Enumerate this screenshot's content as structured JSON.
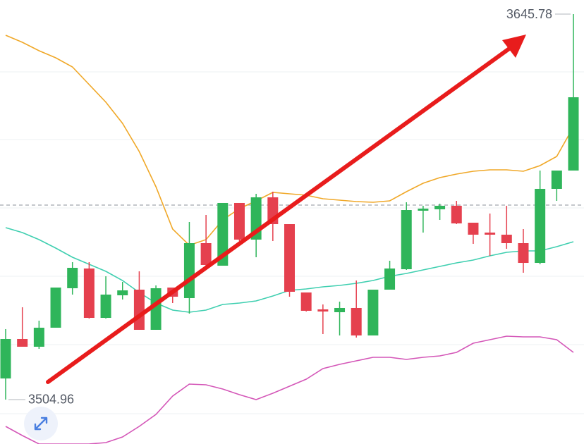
{
  "chart_data": {
    "type": "candlestick",
    "ylim": [
      3488.74,
      3650.93
    ],
    "gridlines": [
      3624.67,
      3599.96,
      3574.98,
      3550.01,
      3525.04,
      3499.81
    ],
    "reference_line": 3576.01,
    "up_color": "#2fb55a",
    "down_color": "#e5404e",
    "categories": [
      null,
      null,
      null,
      null,
      null,
      null,
      null,
      null,
      null,
      null,
      null,
      null,
      null,
      null,
      null,
      null,
      null,
      null,
      null,
      null,
      null,
      null,
      null,
      null,
      null,
      null,
      null,
      null,
      null,
      null,
      null,
      null,
      null,
      null,
      null
    ],
    "open": [
      3512.68,
      3527.1,
      3524.27,
      3531.22,
      3545.64,
      3552.85,
      3534.82,
      3543.06,
      3545.12,
      3530.45,
      3545.89,
      3542.03,
      3562.11,
      3553.87,
      3576.79,
      3563.4,
      3578.85,
      3569.06,
      3544.09,
      3537.91,
      3536.88,
      3538.43,
      3528.39,
      3545.12,
      3552.59,
      3573.96,
      3574.47,
      3575.76,
      3569.58,
      3565.97,
      3565.2,
      3562.11,
      3554.9,
      3581.94,
      3588.63
    ],
    "high": [
      3530.71,
      3538.69,
      3533.79,
      3545.89,
      3555.16,
      3555.16,
      3550.01,
      3547.95,
      3551.82,
      3546.67,
      3545.89,
      3569.84,
      3572.41,
      3576.79,
      3576.79,
      3580.13,
      3580.91,
      3569.06,
      3544.09,
      3539.72,
      3540.75,
      3548.47,
      3545.12,
      3555.68,
      3577.04,
      3575.76,
      3576.53,
      3577.56,
      3569.58,
      3572.93,
      3575.76,
      3567.26,
      3588.63,
      3588.63,
      3645.78
    ],
    "low": [
      3504.96,
      3524.27,
      3523.5,
      3531.22,
      3543.32,
      3534.57,
      3534.57,
      3541.52,
      3530.45,
      3530.45,
      3540.23,
      3536.37,
      3553.87,
      3553.87,
      3562.89,
      3556.96,
      3562.89,
      3542.55,
      3537.14,
      3528.9,
      3528.39,
      3527.62,
      3528.39,
      3545.12,
      3552.33,
      3565.97,
      3570.61,
      3569.06,
      3561.86,
      3557.48,
      3560.05,
      3551.3,
      3554.39,
      3577.56,
      3588.63
    ],
    "close": [
      3527.1,
      3524.27,
      3531.22,
      3545.89,
      3553.1,
      3534.82,
      3543.32,
      3544.86,
      3530.45,
      3545.64,
      3542.55,
      3562.11,
      3554.13,
      3576.79,
      3563.4,
      3578.85,
      3569.06,
      3544.35,
      3537.4,
      3537.14,
      3538.43,
      3528.39,
      3545.12,
      3552.85,
      3574.21,
      3574.73,
      3575.76,
      3569.32,
      3565.2,
      3565.2,
      3562.11,
      3554.9,
      3581.94,
      3588.63,
      3615.4
    ],
    "bands": [
      {
        "color": "#f0a828",
        "values": [
          3638.06,
          3635.48,
          3632.39,
          3629.82,
          3626.47,
          3620.04,
          3613.6,
          3605.88,
          3595.58,
          3582.71,
          3567.26,
          3561.34,
          3563.4,
          3570.61,
          3574.73,
          3577.56,
          3580.65,
          3580.13,
          3579.62,
          3578.33,
          3577.82,
          3577.3,
          3577.04,
          3577.56,
          3580.91,
          3584.0,
          3586.06,
          3587.34,
          3588.37,
          3588.89,
          3588.89,
          3588.37,
          3590.43,
          3593.78,
          3604.59
        ]
      },
      {
        "color": "#3fcfb0",
        "values": [
          3567.78,
          3565.97,
          3563.4,
          3560.31,
          3556.96,
          3554.39,
          3551.82,
          3548.47,
          3544.09,
          3540.23,
          3537.66,
          3536.88,
          3537.66,
          3539.72,
          3540.23,
          3541.0,
          3542.81,
          3544.86,
          3545.38,
          3546.15,
          3546.67,
          3547.44,
          3548.47,
          3550.01,
          3551.04,
          3552.33,
          3553.62,
          3554.9,
          3555.94,
          3557.48,
          3558.77,
          3559.28,
          3559.28,
          3560.83,
          3562.63
        ]
      },
      {
        "color": "#d457b8",
        "values": [
          3495.18,
          3491.83,
          3488.74,
          3488.74,
          3488.74,
          3488.74,
          3489.26,
          3491.32,
          3495.18,
          3499.56,
          3506.25,
          3510.63,
          3510.37,
          3508.82,
          3506.76,
          3504.96,
          3507.28,
          3509.85,
          3512.43,
          3516.29,
          3517.83,
          3519.12,
          3520.41,
          3520.41,
          3519.64,
          3520.41,
          3520.92,
          3522.21,
          3525.56,
          3526.84,
          3528.13,
          3527.87,
          3527.87,
          3526.84,
          3522.21
        ]
      }
    ],
    "high_mark": 3645.78,
    "low_mark": 3504.96
  }
}
